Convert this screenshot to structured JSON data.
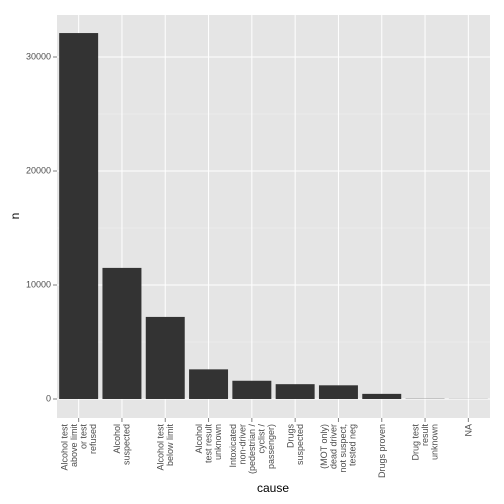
{
  "chart_data": {
    "type": "bar",
    "x_label": "cause",
    "y_label": "n",
    "categories": [
      "Alcohol test\nabove limit\nor test\nrefused",
      "Alcohol\nsuspected",
      "Alcohol test\nbelow limit",
      "Alcohol\ntest result\nunknown",
      "Intoxicated\nnon-driver\n(pedestrian /\ncyclist /\npassenger)",
      "Drugs\nsuspected",
      "(MOT only)\ndead driver\nnot suspect,\ntested neg",
      "Drugs proven",
      "Drug test\nresult\nunknown",
      "NA"
    ],
    "values": [
      32100,
      11500,
      7200,
      2600,
      1600,
      1300,
      1200,
      450,
      20,
      10
    ],
    "color": "#333333",
    "ylim": [
      -1667,
      33684
    ],
    "yticks": [
      0,
      10000,
      20000,
      30000
    ],
    "grid": true
  }
}
